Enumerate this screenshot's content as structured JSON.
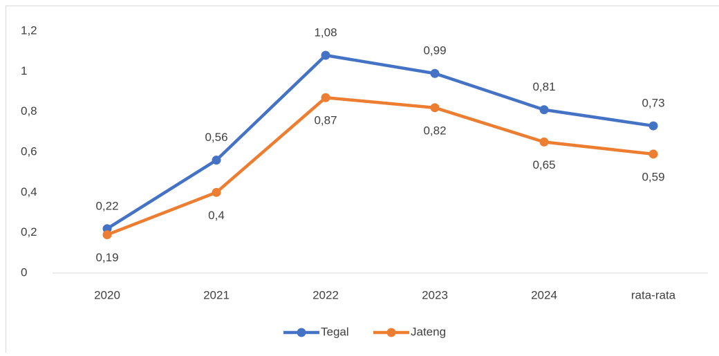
{
  "chart_data": {
    "type": "line",
    "categories": [
      "2020",
      "2021",
      "2022",
      "2023",
      "2024",
      "rata-rata"
    ],
    "series": [
      {
        "name": "Tegal",
        "color": "#4472c4",
        "values": [
          0.22,
          0.56,
          1.08,
          0.99,
          0.81,
          0.73
        ],
        "value_labels": [
          "0,22",
          "0,56",
          "1,08",
          "0,99",
          "0,81",
          "0,73"
        ]
      },
      {
        "name": "Jateng",
        "color": "#ed7d31",
        "values": [
          0.19,
          0.4,
          0.87,
          0.82,
          0.65,
          0.59
        ],
        "value_labels": [
          "0,19",
          "0,4",
          "0,87",
          "0,82",
          "0,65",
          "0,59"
        ]
      }
    ],
    "ylim": [
      0,
      1.2
    ],
    "yticks": [
      0,
      {
        "value": 0.2,
        "label": "0,2"
      },
      {
        "value": 0.4,
        "label": "0,4"
      },
      {
        "value": 0.6,
        "label": "0,6"
      },
      {
        "value": 0.8,
        "label": "0,8"
      },
      1,
      {
        "value": 1.2,
        "label": "1,2"
      }
    ],
    "grid": false,
    "legend": "bottom"
  }
}
